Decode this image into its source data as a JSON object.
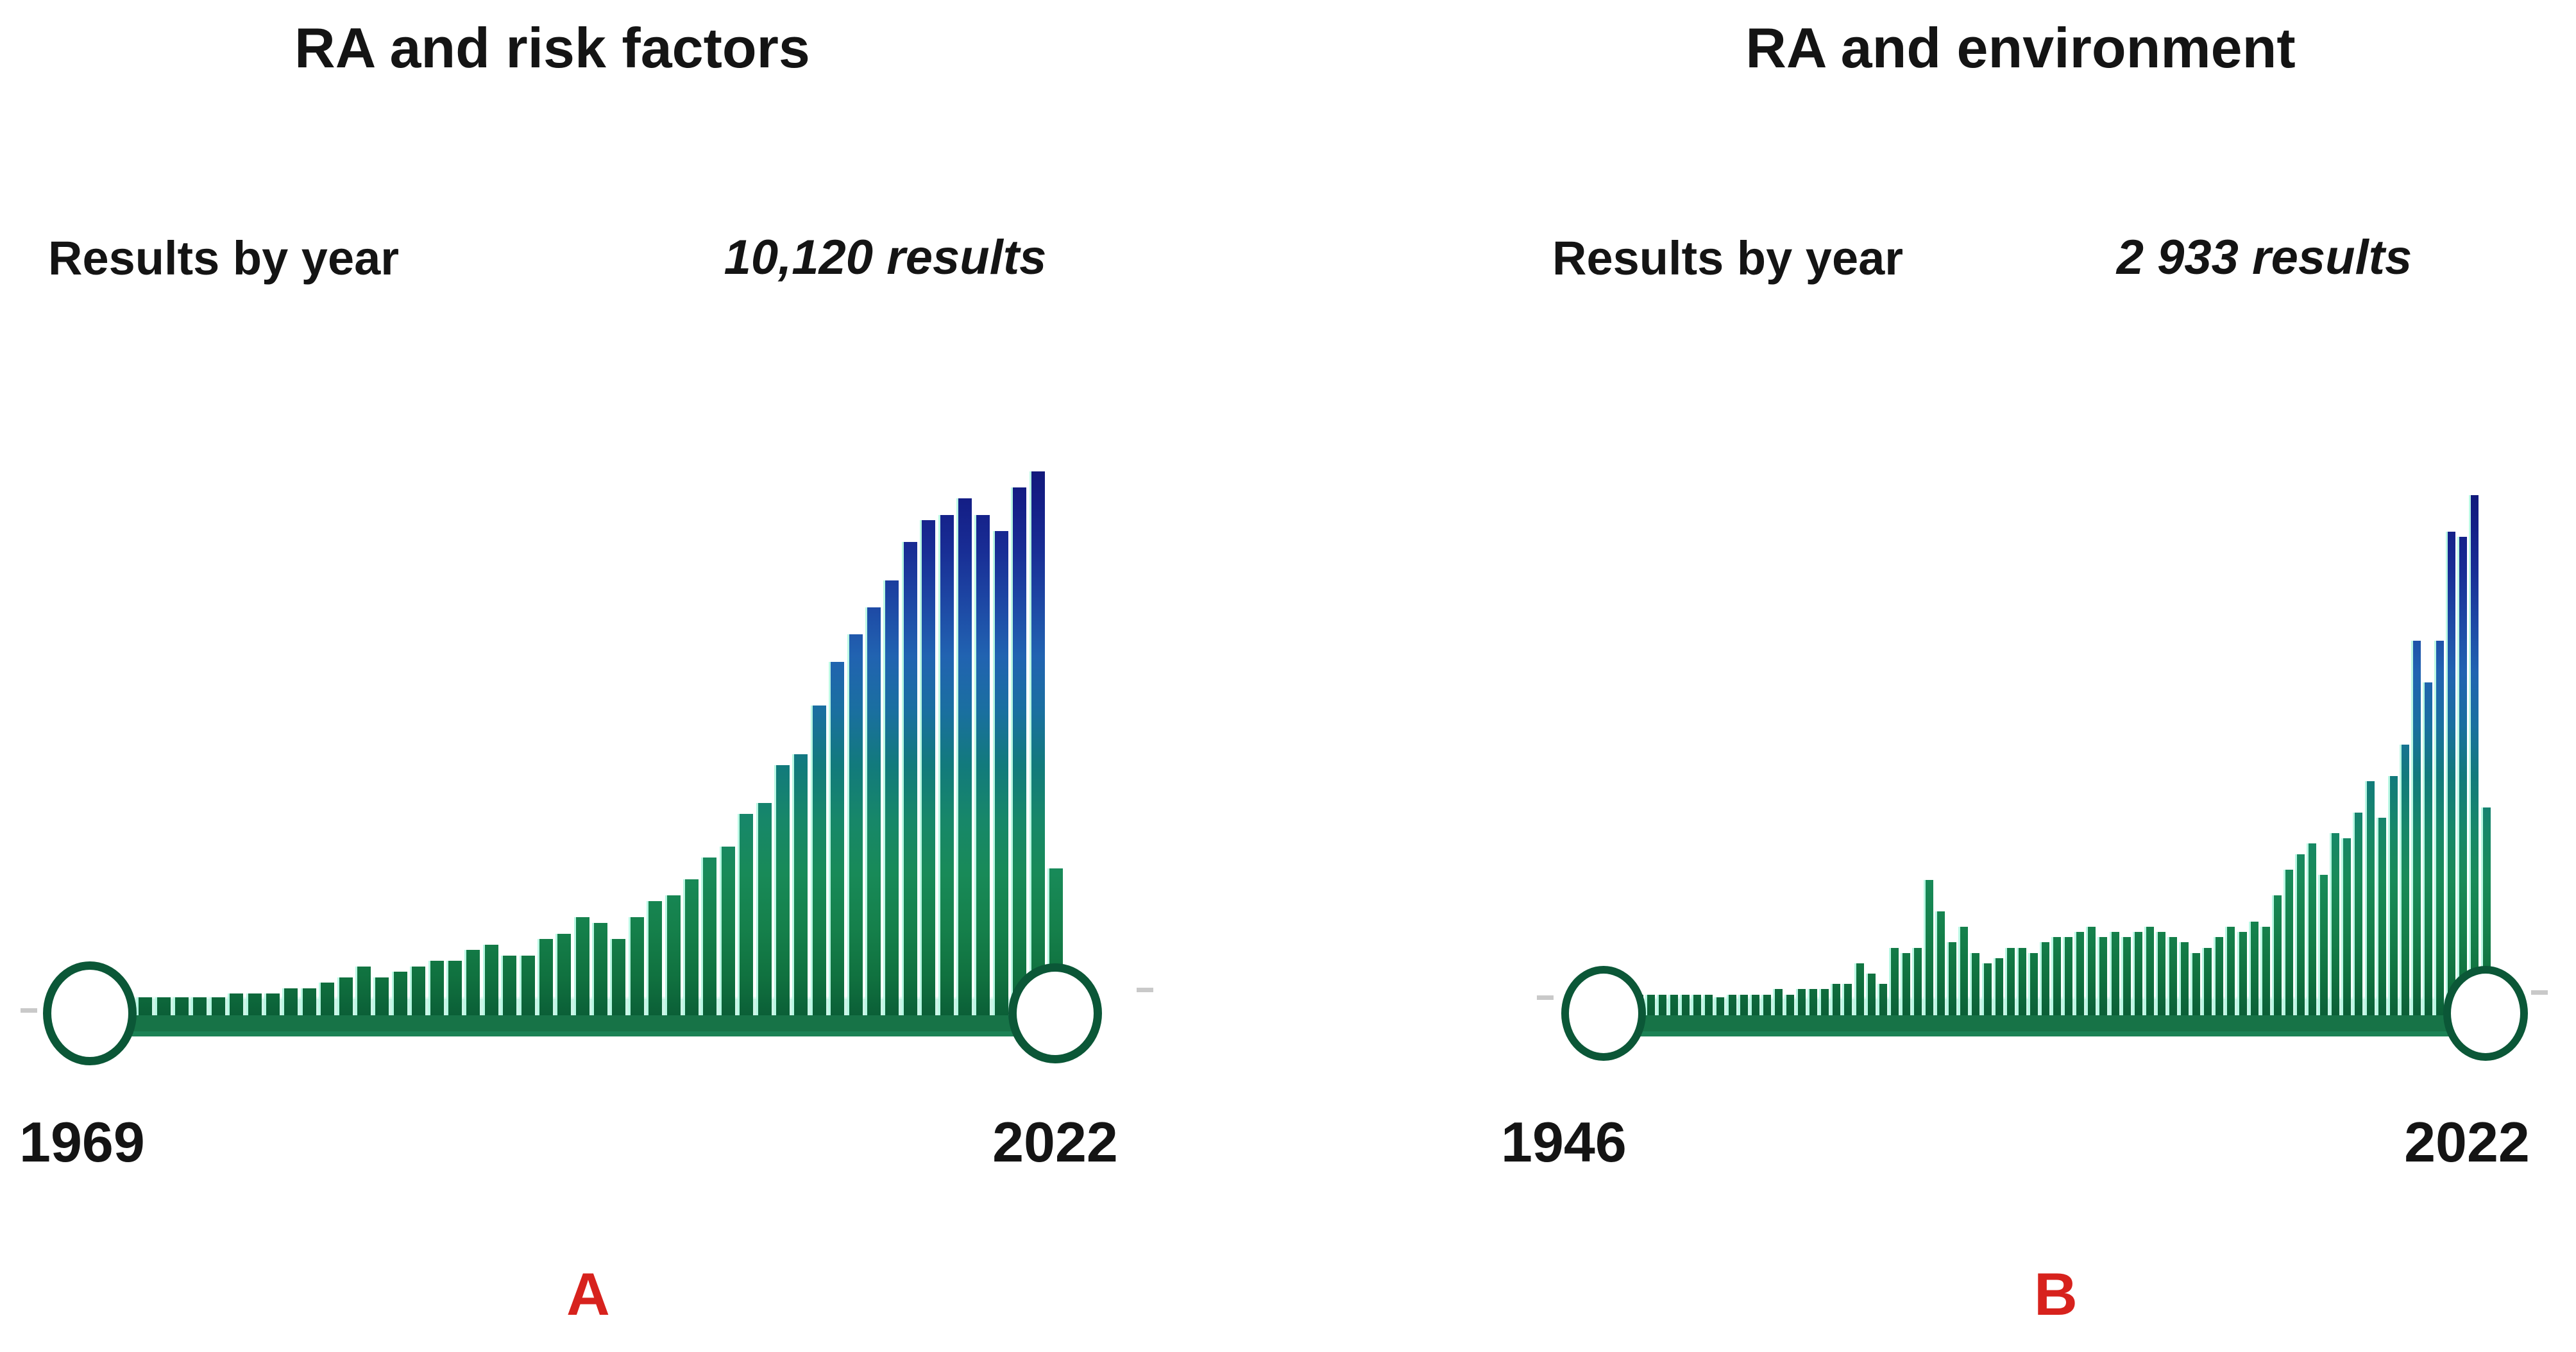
{
  "panels": [
    {
      "title": "RA and risk factors",
      "results_by_year_label": "Results by year",
      "results_total": "10,120 results",
      "start_year_label": "1969",
      "end_year_label": "2022",
      "panel_letter": "A"
    },
    {
      "title": "RA and environment",
      "results_by_year_label": "Results by year",
      "results_total": "2 933 results",
      "start_year_label": "1946",
      "end_year_label": "2022",
      "panel_letter": "B"
    }
  ],
  "colors": {
    "panel_letter_red": "#d7221d",
    "bar_green_base": "#0b5f37",
    "bar_teal_mid": "#127a7c",
    "bar_blue_upper": "#2163b1",
    "bar_navy_top": "#121a7c",
    "bar_edge_highlight": "#b2f7e1",
    "rail_dark_green": "#177347",
    "rail_mint": "#cdf5e8",
    "handle_border_green": "#0b5737",
    "end_tick_gray": "#c9c9c9",
    "text_black": "#141414"
  },
  "chart_data": [
    {
      "type": "bar",
      "title": "RA and risk factors",
      "annotation": "10,120 results",
      "legend": "none",
      "grid": false,
      "x_axis": {
        "start": 1969,
        "end": 2022,
        "step": 1,
        "start_label": "1969",
        "end_label": "2022"
      },
      "y_axis": {
        "visible": false,
        "unit": "relative bar height, % of tallest bar (2021 = 100)"
      },
      "values": [
        2,
        3,
        2,
        3,
        3,
        3,
        3,
        3,
        4,
        4,
        4,
        5,
        5,
        6,
        7,
        9,
        7,
        8,
        9,
        10,
        10,
        12,
        13,
        11,
        11,
        14,
        15,
        18,
        17,
        14,
        18,
        21,
        22,
        25,
        29,
        31,
        37,
        39,
        46,
        48,
        57,
        65,
        70,
        75,
        80,
        87,
        91,
        92,
        95,
        92,
        89,
        97,
        100,
        27
      ]
    },
    {
      "type": "bar",
      "title": "RA and environment",
      "annotation": "2 933 results",
      "legend": "none",
      "grid": false,
      "x_axis": {
        "start": 1946,
        "end": 2022,
        "step": 1,
        "start_label": "1946",
        "end_label": "2022"
      },
      "y_axis": {
        "visible": false,
        "unit": "relative bar height, % of tallest bar (2021 = 100)"
      },
      "values": [
        3,
        3,
        3,
        4,
        4,
        4,
        4,
        4,
        4,
        4,
        3,
        4,
        4,
        4,
        4,
        5,
        4,
        5,
        5,
        5,
        6,
        6,
        10,
        8,
        6,
        13,
        12,
        13,
        26,
        20,
        14,
        17,
        12,
        10,
        11,
        13,
        13,
        12,
        14,
        15,
        15,
        16,
        17,
        15,
        16,
        15,
        16,
        17,
        16,
        15,
        14,
        12,
        13,
        15,
        17,
        16,
        18,
        17,
        23,
        28,
        31,
        33,
        27,
        35,
        34,
        39,
        45,
        38,
        46,
        52,
        72,
        64,
        72,
        93,
        92,
        100,
        40
      ]
    }
  ]
}
